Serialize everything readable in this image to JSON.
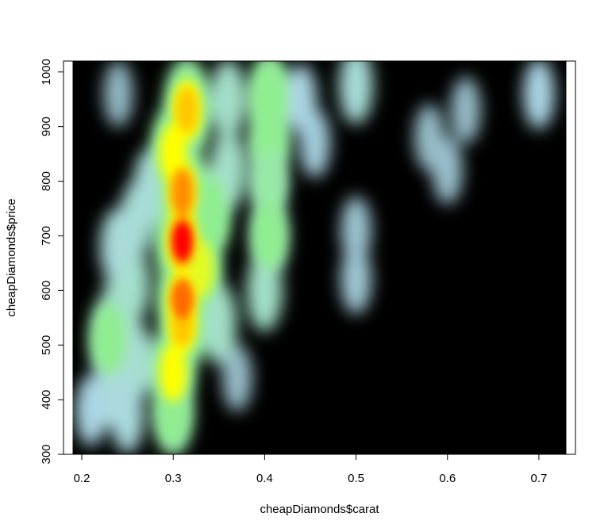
{
  "chart_data": {
    "type": "heatmap",
    "title": "",
    "xlabel": "cheapDiamonds$carat",
    "ylabel": "cheapDiamonds$price",
    "xlim": [
      0.18,
      0.74
    ],
    "ylim": [
      300,
      1020
    ],
    "data_xrange": [
      0.19,
      0.73
    ],
    "data_yrange": [
      300,
      1020
    ],
    "x_ticks": [
      0.2,
      0.3,
      0.4,
      0.5,
      0.6,
      0.7
    ],
    "x_tick_labels": [
      "0.2",
      "0.3",
      "0.4",
      "0.5",
      "0.6",
      "0.7"
    ],
    "y_ticks": [
      300,
      400,
      500,
      600,
      700,
      800,
      900,
      1000
    ],
    "y_tick_labels": [
      "300",
      "400",
      "500",
      "600",
      "700",
      "800",
      "900",
      "1000"
    ],
    "colormap": [
      "#000000",
      "#add8e6",
      "#90ee90",
      "#ffff00",
      "#ff8c00",
      "#ff0000"
    ],
    "background_color": "#000000",
    "grid": false,
    "density_blobs": [
      {
        "x": 0.31,
        "y": 690,
        "density": 1.0
      },
      {
        "x": 0.31,
        "y": 780,
        "density": 0.8
      },
      {
        "x": 0.31,
        "y": 580,
        "density": 0.85
      },
      {
        "x": 0.31,
        "y": 540,
        "density": 0.7
      },
      {
        "x": 0.315,
        "y": 930,
        "density": 0.7
      },
      {
        "x": 0.3,
        "y": 850,
        "density": 0.65
      },
      {
        "x": 0.33,
        "y": 640,
        "density": 0.55
      },
      {
        "x": 0.34,
        "y": 740,
        "density": 0.5
      },
      {
        "x": 0.3,
        "y": 450,
        "density": 0.6
      },
      {
        "x": 0.3,
        "y": 380,
        "density": 0.45
      },
      {
        "x": 0.405,
        "y": 950,
        "density": 0.5
      },
      {
        "x": 0.405,
        "y": 870,
        "density": 0.45
      },
      {
        "x": 0.405,
        "y": 800,
        "density": 0.35
      },
      {
        "x": 0.405,
        "y": 700,
        "density": 0.4
      },
      {
        "x": 0.4,
        "y": 600,
        "density": 0.3
      },
      {
        "x": 0.36,
        "y": 820,
        "density": 0.3
      },
      {
        "x": 0.36,
        "y": 950,
        "density": 0.28
      },
      {
        "x": 0.35,
        "y": 540,
        "density": 0.3
      },
      {
        "x": 0.23,
        "y": 510,
        "density": 0.45
      },
      {
        "x": 0.24,
        "y": 560,
        "density": 0.3
      },
      {
        "x": 0.255,
        "y": 610,
        "density": 0.28
      },
      {
        "x": 0.26,
        "y": 470,
        "density": 0.25
      },
      {
        "x": 0.26,
        "y": 730,
        "density": 0.22
      },
      {
        "x": 0.275,
        "y": 790,
        "density": 0.22
      },
      {
        "x": 0.23,
        "y": 420,
        "density": 0.2
      },
      {
        "x": 0.238,
        "y": 680,
        "density": 0.2
      },
      {
        "x": 0.21,
        "y": 380,
        "density": 0.12
      },
      {
        "x": 0.25,
        "y": 370,
        "density": 0.18
      },
      {
        "x": 0.5,
        "y": 975,
        "density": 0.22
      },
      {
        "x": 0.5,
        "y": 710,
        "density": 0.08
      },
      {
        "x": 0.5,
        "y": 620,
        "density": 0.09
      },
      {
        "x": 0.44,
        "y": 950,
        "density": 0.12
      },
      {
        "x": 0.455,
        "y": 870,
        "density": 0.1
      },
      {
        "x": 0.6,
        "y": 820,
        "density": 0.07
      },
      {
        "x": 0.58,
        "y": 880,
        "density": 0.06
      },
      {
        "x": 0.62,
        "y": 930,
        "density": 0.06
      },
      {
        "x": 0.7,
        "y": 960,
        "density": 0.12
      },
      {
        "x": 0.24,
        "y": 960,
        "density": 0.05
      },
      {
        "x": 0.37,
        "y": 440,
        "density": 0.06
      }
    ]
  }
}
